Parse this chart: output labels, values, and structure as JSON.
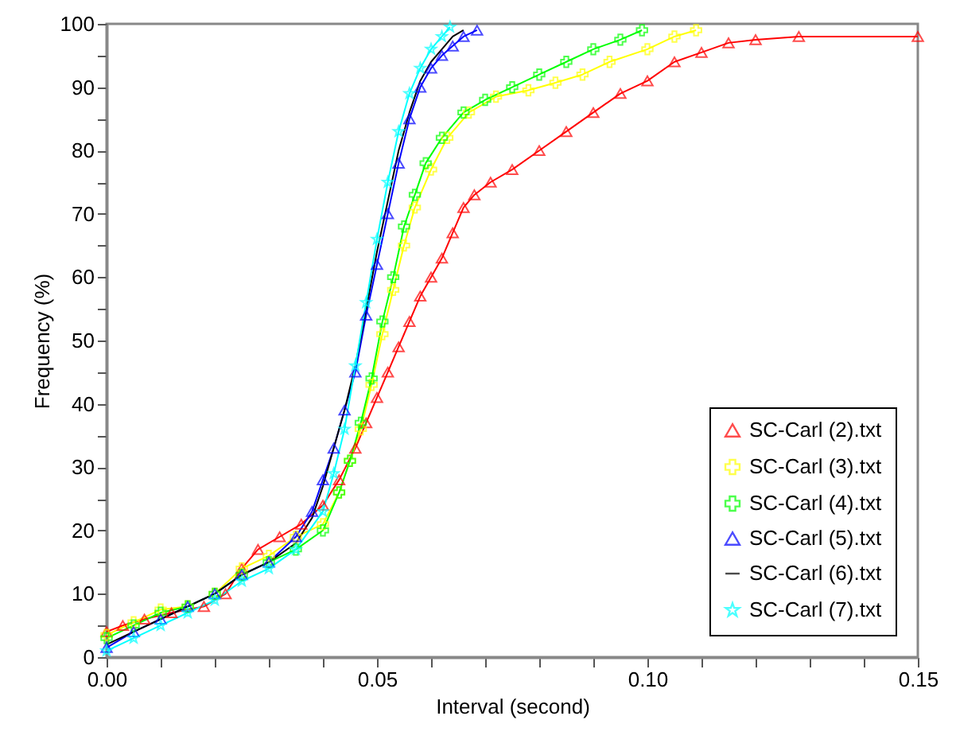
{
  "chart_data": {
    "type": "line",
    "xlabel": "Interval (second)",
    "ylabel": "Frequency (%)",
    "xlim": [
      0,
      0.15
    ],
    "ylim": [
      0,
      100
    ],
    "xticks": [
      {
        "value": 0,
        "label": "0.00"
      },
      {
        "value": 0.01,
        "label": null
      },
      {
        "value": 0.02,
        "label": null
      },
      {
        "value": 0.03,
        "label": null
      },
      {
        "value": 0.04,
        "label": null
      },
      {
        "value": 0.05,
        "label": "0.05"
      },
      {
        "value": 0.06,
        "label": null
      },
      {
        "value": 0.07,
        "label": null
      },
      {
        "value": 0.08,
        "label": null
      },
      {
        "value": 0.09,
        "label": null
      },
      {
        "value": 0.1,
        "label": "0.10"
      },
      {
        "value": 0.11,
        "label": null
      },
      {
        "value": 0.12,
        "label": null
      },
      {
        "value": 0.13,
        "label": null
      },
      {
        "value": 0.14,
        "label": null
      },
      {
        "value": 0.15,
        "label": "0.15"
      }
    ],
    "yticks": [
      0,
      {
        "value": 5,
        "label": null
      },
      10,
      {
        "value": 15,
        "label": null
      },
      20,
      {
        "value": 25,
        "label": null
      },
      30,
      {
        "value": 35,
        "label": null
      },
      40,
      {
        "value": 45,
        "label": null
      },
      50,
      {
        "value": 55,
        "label": null
      },
      60,
      {
        "value": 65,
        "label": null
      },
      70,
      {
        "value": 75,
        "label": null
      },
      80,
      {
        "value": 85,
        "label": null
      },
      90,
      {
        "value": 95,
        "label": null
      },
      100
    ],
    "legend": "bottom right",
    "grid": false,
    "series": [
      {
        "name": "SC-Carl (2).txt",
        "color": "#ff0000",
        "marker": "triangle",
        "x": [
          0,
          0.003,
          0.007,
          0.012,
          0.018,
          0.022,
          0.025,
          0.028,
          0.032,
          0.036,
          0.04,
          0.043,
          0.046,
          0.048,
          0.05,
          0.052,
          0.054,
          0.056,
          0.058,
          0.06,
          0.062,
          0.064,
          0.066,
          0.068,
          0.071,
          0.075,
          0.08,
          0.085,
          0.09,
          0.095,
          0.1,
          0.105,
          0.11,
          0.115,
          0.12,
          0.128,
          0.15
        ],
        "values": [
          4,
          5,
          6,
          7,
          8,
          10,
          14,
          17,
          19,
          21,
          24,
          28,
          33,
          37,
          41,
          45,
          49,
          53,
          57,
          60,
          63,
          67,
          71,
          73,
          75,
          77,
          80,
          83,
          86,
          89,
          91,
          94,
          95.5,
          97,
          97.5,
          98,
          98
        ]
      },
      {
        "name": "SC-Carl (3).txt",
        "color": "#ffff00",
        "marker": "cross",
        "x": [
          0,
          0.005,
          0.01,
          0.015,
          0.02,
          0.025,
          0.03,
          0.035,
          0.04,
          0.043,
          0.045,
          0.047,
          0.049,
          0.051,
          0.053,
          0.055,
          0.057,
          0.06,
          0.063,
          0.067,
          0.072,
          0.078,
          0.083,
          0.088,
          0.093,
          0.1,
          0.105,
          0.109
        ],
        "values": [
          3.5,
          5.5,
          7.5,
          8,
          10,
          14,
          16,
          19,
          21,
          26,
          31,
          36,
          43,
          51,
          58,
          65,
          71,
          77,
          82,
          86,
          88.5,
          89.5,
          90.7,
          92,
          94,
          96,
          98,
          99
        ]
      },
      {
        "name": "SC-Carl (4).txt",
        "color": "#00ff00",
        "marker": "cross",
        "x": [
          0,
          0.005,
          0.01,
          0.015,
          0.02,
          0.025,
          0.03,
          0.035,
          0.04,
          0.043,
          0.045,
          0.047,
          0.049,
          0.051,
          0.053,
          0.055,
          0.057,
          0.059,
          0.062,
          0.066,
          0.07,
          0.075,
          0.08,
          0.085,
          0.09,
          0.095,
          0.099
        ],
        "values": [
          3,
          5,
          7,
          8,
          10,
          13,
          15,
          17,
          20,
          26,
          31,
          37,
          44,
          53,
          60,
          68,
          73,
          78,
          82,
          86,
          88,
          90,
          92,
          94,
          96,
          97.5,
          99
        ]
      },
      {
        "name": "SC-Carl (5).txt",
        "color": "#0000ff",
        "marker": "triangle",
        "x": [
          0,
          0.005,
          0.01,
          0.015,
          0.02,
          0.025,
          0.03,
          0.035,
          0.038,
          0.04,
          0.042,
          0.044,
          0.046,
          0.048,
          0.05,
          0.052,
          0.054,
          0.056,
          0.058,
          0.06,
          0.062,
          0.064,
          0.066,
          0.0685
        ],
        "values": [
          1.5,
          4,
          6,
          8,
          10,
          13,
          15,
          19,
          23,
          28,
          33,
          39,
          45,
          54,
          62,
          70,
          78,
          85,
          90,
          93,
          95,
          96.5,
          98,
          99
        ]
      },
      {
        "name": "SC-Carl (6).txt",
        "color": "#000000",
        "marker": "none",
        "x": [
          0,
          0.005,
          0.01,
          0.015,
          0.02,
          0.025,
          0.03,
          0.035,
          0.038,
          0.04,
          0.042,
          0.044,
          0.046,
          0.048,
          0.05,
          0.052,
          0.054,
          0.056,
          0.058,
          0.06,
          0.062,
          0.064,
          0.066
        ],
        "values": [
          2,
          4,
          6,
          8,
          10,
          13,
          15,
          18,
          22,
          27,
          33,
          39,
          46,
          55,
          64,
          72,
          80,
          86,
          91,
          94,
          96,
          98,
          99
        ]
      },
      {
        "name": "SC-Carl (7).txt",
        "color": "#00ffff",
        "marker": "star",
        "x": [
          0,
          0.005,
          0.01,
          0.015,
          0.02,
          0.025,
          0.03,
          0.035,
          0.04,
          0.042,
          0.044,
          0.046,
          0.048,
          0.05,
          0.052,
          0.054,
          0.056,
          0.058,
          0.06,
          0.062,
          0.0635
        ],
        "values": [
          1,
          3,
          5,
          7,
          9,
          12,
          14,
          17,
          23,
          29,
          36,
          46,
          56,
          66,
          75,
          83,
          89,
          93,
          96,
          98,
          99.5
        ]
      }
    ]
  }
}
